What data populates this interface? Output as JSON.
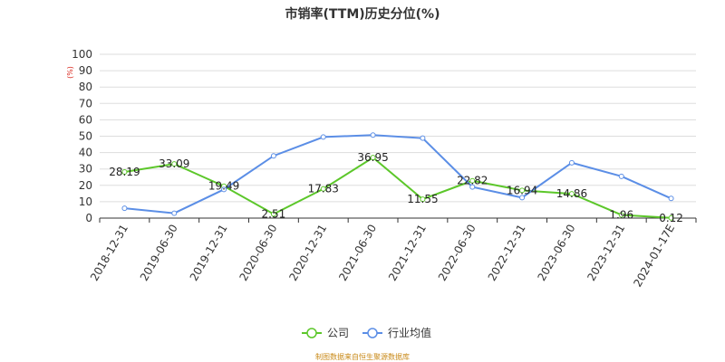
{
  "chart_data": {
    "type": "line",
    "title": "市销率(TTM)历史分位(%)",
    "y_unit": "(%)",
    "categories": [
      "2018-12-31",
      "2019-06-30",
      "2019-12-31",
      "2020-06-30",
      "2020-12-31",
      "2021-06-30",
      "2021-12-31",
      "2022-06-30",
      "2022-12-31",
      "2023-06-30",
      "2023-12-31",
      "2024-01-17E"
    ],
    "y_ticks": [
      0,
      10,
      20,
      30,
      40,
      50,
      60,
      70,
      80,
      90,
      100
    ],
    "ylim": [
      0,
      100
    ],
    "grid": true,
    "legend_position": "bottom",
    "series": [
      {
        "name": "公司",
        "color": "#5cc72a",
        "values": [
          28.19,
          33.09,
          19.49,
          2.51,
          17.83,
          36.95,
          11.55,
          22.82,
          16.94,
          14.86,
          1.96,
          0.12
        ],
        "labels": [
          "28.19",
          "33.09",
          "19.49",
          "2.51",
          "17.83",
          "36.95",
          "11.55",
          "22.82",
          "16.94",
          "14.86",
          "1.96",
          "0.12"
        ]
      },
      {
        "name": "行业均值",
        "color": "#5b8ee6",
        "values": [
          6.0,
          3.0,
          17.5,
          38.0,
          49.5,
          50.7,
          48.8,
          19.0,
          12.5,
          33.8,
          25.5,
          12.0
        ]
      }
    ]
  },
  "source_note": "制图数据来自恒生聚源数据库"
}
